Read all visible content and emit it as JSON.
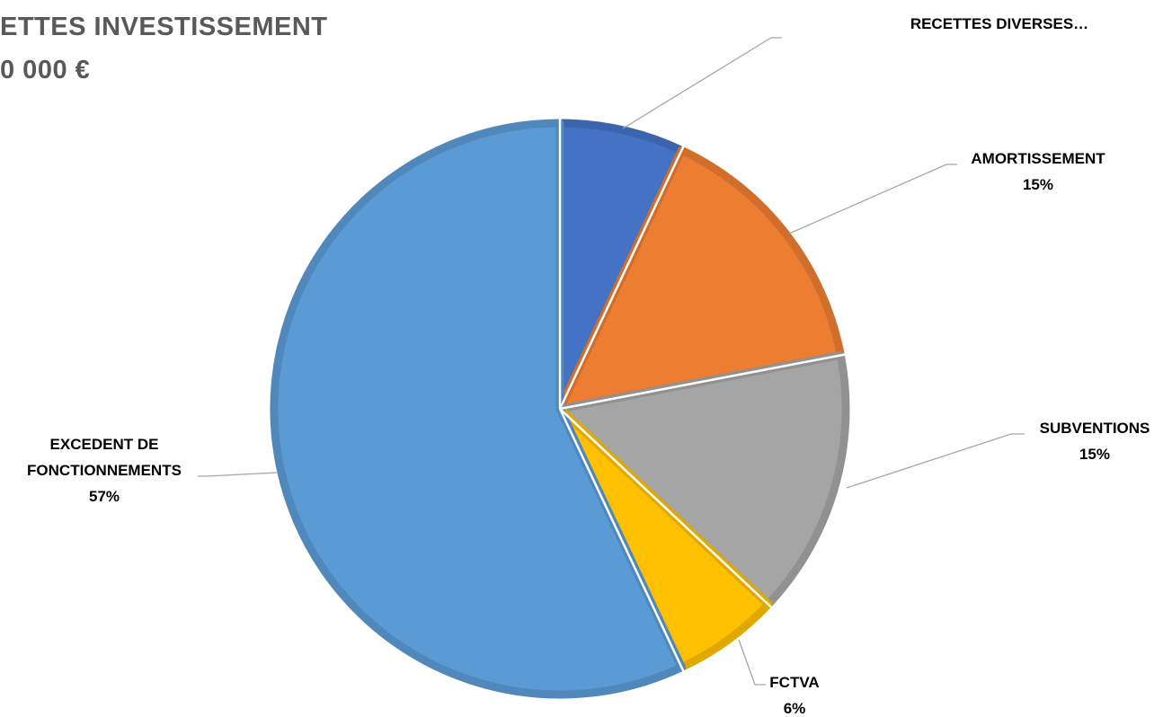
{
  "chart_data": {
    "type": "pie",
    "title": "ETTES INVESTISSEMENT",
    "subtitle": "0 000 €",
    "categories": [
      "RECETTES DIVERSES…",
      "AMORTISSEMENT",
      "SUBVENTIONS",
      "FCTVA",
      "EXCEDENT DE FONCTIONNEMENTS"
    ],
    "values": [
      7,
      15,
      15,
      6,
      57
    ],
    "value_labels": [
      null,
      "15%",
      "15%",
      "6%",
      "57%"
    ],
    "colors": [
      "#4472c4",
      "#ed7d31",
      "#a5a5a5",
      "#ffc000",
      "#5b9bd5"
    ]
  }
}
